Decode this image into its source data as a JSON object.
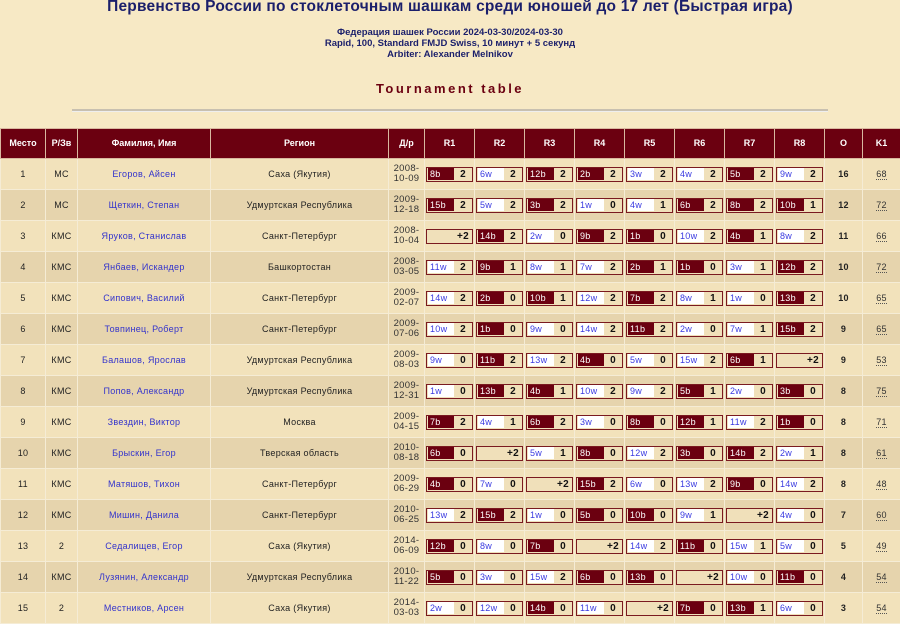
{
  "header": {
    "title": "Первенство России по стоклеточным шашкам среди юношей до 17 лет (Быстрая игра)",
    "line1": "Федерация шашек России 2024-03-30/2024-03-30",
    "line2": "Rapid, 100, Standard FMJD Swiss, 10 минут + 5 секунд",
    "line3": "Arbiter: Alexander Melnikov",
    "section": "Tournament table"
  },
  "colors": {
    "header_bg": "#6b0010",
    "page_bg": "#f7e9c5",
    "link": "#3333cc",
    "black_opp": "#6b0010"
  },
  "table": {
    "columns": [
      "Место",
      "Р/Зв",
      "Фамилия, Имя",
      "Регион",
      "Д/р",
      "R1",
      "R2",
      "R3",
      "R4",
      "R5",
      "R6",
      "R7",
      "R8",
      "O",
      "K1"
    ],
    "rows": [
      {
        "place": "1",
        "rank": "МС",
        "name": "Егоров, Айсен",
        "region": "Саха (Якутия)",
        "dob": "2008-10-09",
        "rounds": [
          [
            "8b",
            "2"
          ],
          [
            "6w",
            "2"
          ],
          [
            "12b",
            "2"
          ],
          [
            "2b",
            "2"
          ],
          [
            "3w",
            "2"
          ],
          [
            "4w",
            "2"
          ],
          [
            "5b",
            "2"
          ],
          [
            "9w",
            "2"
          ]
        ],
        "points": "16",
        "k1": "68"
      },
      {
        "place": "2",
        "rank": "МС",
        "name": "Щеткин, Степан",
        "region": "Удмуртская Республика",
        "dob": "2009-12-18",
        "rounds": [
          [
            "15b",
            "2"
          ],
          [
            "5w",
            "2"
          ],
          [
            "3b",
            "2"
          ],
          [
            "1w",
            "0"
          ],
          [
            "4w",
            "1"
          ],
          [
            "6b",
            "2"
          ],
          [
            "8b",
            "2"
          ],
          [
            "10b",
            "1"
          ]
        ],
        "points": "12",
        "k1": "72"
      },
      {
        "place": "3",
        "rank": "КМС",
        "name": "Яруков, Станислав",
        "region": "Санкт-Петербург",
        "dob": "2008-10-04",
        "rounds": [
          [
            "",
            "+2"
          ],
          [
            "14b",
            "2"
          ],
          [
            "2w",
            "0"
          ],
          [
            "9b",
            "2"
          ],
          [
            "1b",
            "0"
          ],
          [
            "10w",
            "2"
          ],
          [
            "4b",
            "1"
          ],
          [
            "8w",
            "2"
          ]
        ],
        "points": "11",
        "k1": "66"
      },
      {
        "place": "4",
        "rank": "КМС",
        "name": "Янбаев, Искандер",
        "region": "Башкортостан",
        "dob": "2008-03-05",
        "rounds": [
          [
            "11w",
            "2"
          ],
          [
            "9b",
            "1"
          ],
          [
            "8w",
            "1"
          ],
          [
            "7w",
            "2"
          ],
          [
            "2b",
            "1"
          ],
          [
            "1b",
            "0"
          ],
          [
            "3w",
            "1"
          ],
          [
            "12b",
            "2"
          ]
        ],
        "points": "10",
        "k1": "72"
      },
      {
        "place": "5",
        "rank": "КМС",
        "name": "Сипович, Василий",
        "region": "Санкт-Петербург",
        "dob": "2009-02-07",
        "rounds": [
          [
            "14w",
            "2"
          ],
          [
            "2b",
            "0"
          ],
          [
            "10b",
            "1"
          ],
          [
            "12w",
            "2"
          ],
          [
            "7b",
            "2"
          ],
          [
            "8w",
            "1"
          ],
          [
            "1w",
            "0"
          ],
          [
            "13b",
            "2"
          ]
        ],
        "points": "10",
        "k1": "65"
      },
      {
        "place": "6",
        "rank": "КМС",
        "name": "Товпинец, Роберт",
        "region": "Санкт-Петербург",
        "dob": "2009-07-06",
        "rounds": [
          [
            "10w",
            "2"
          ],
          [
            "1b",
            "0"
          ],
          [
            "9w",
            "0"
          ],
          [
            "14w",
            "2"
          ],
          [
            "11b",
            "2"
          ],
          [
            "2w",
            "0"
          ],
          [
            "7w",
            "1"
          ],
          [
            "15b",
            "2"
          ]
        ],
        "points": "9",
        "k1": "65"
      },
      {
        "place": "7",
        "rank": "КМС",
        "name": "Балашов, Ярослав",
        "region": "Удмуртская Республика",
        "dob": "2009-08-03",
        "rounds": [
          [
            "9w",
            "0"
          ],
          [
            "11b",
            "2"
          ],
          [
            "13w",
            "2"
          ],
          [
            "4b",
            "0"
          ],
          [
            "5w",
            "0"
          ],
          [
            "15w",
            "2"
          ],
          [
            "6b",
            "1"
          ],
          [
            "",
            "+2"
          ]
        ],
        "points": "9",
        "k1": "53"
      },
      {
        "place": "8",
        "rank": "КМС",
        "name": "Попов, Александр",
        "region": "Удмуртская Республика",
        "dob": "2009-12-31",
        "rounds": [
          [
            "1w",
            "0"
          ],
          [
            "13b",
            "2"
          ],
          [
            "4b",
            "1"
          ],
          [
            "10w",
            "2"
          ],
          [
            "9w",
            "2"
          ],
          [
            "5b",
            "1"
          ],
          [
            "2w",
            "0"
          ],
          [
            "3b",
            "0"
          ]
        ],
        "points": "8",
        "k1": "75"
      },
      {
        "place": "9",
        "rank": "КМС",
        "name": "Звездин, Виктор",
        "region": "Москва",
        "dob": "2009-04-15",
        "rounds": [
          [
            "7b",
            "2"
          ],
          [
            "4w",
            "1"
          ],
          [
            "6b",
            "2"
          ],
          [
            "3w",
            "0"
          ],
          [
            "8b",
            "0"
          ],
          [
            "12b",
            "1"
          ],
          [
            "11w",
            "2"
          ],
          [
            "1b",
            "0"
          ]
        ],
        "points": "8",
        "k1": "71"
      },
      {
        "place": "10",
        "rank": "КМС",
        "name": "Брыскин, Егор",
        "region": "Тверская область",
        "dob": "2010-08-18",
        "rounds": [
          [
            "6b",
            "0"
          ],
          [
            "",
            "+2"
          ],
          [
            "5w",
            "1"
          ],
          [
            "8b",
            "0"
          ],
          [
            "12w",
            "2"
          ],
          [
            "3b",
            "0"
          ],
          [
            "14b",
            "2"
          ],
          [
            "2w",
            "1"
          ]
        ],
        "points": "8",
        "k1": "61"
      },
      {
        "place": "11",
        "rank": "КМС",
        "name": "Матяшов, Тихон",
        "region": "Санкт-Петербург",
        "dob": "2009-06-29",
        "rounds": [
          [
            "4b",
            "0"
          ],
          [
            "7w",
            "0"
          ],
          [
            "",
            "+2"
          ],
          [
            "15b",
            "2"
          ],
          [
            "6w",
            "0"
          ],
          [
            "13w",
            "2"
          ],
          [
            "9b",
            "0"
          ],
          [
            "14w",
            "2"
          ]
        ],
        "points": "8",
        "k1": "48"
      },
      {
        "place": "12",
        "rank": "КМС",
        "name": "Мишин, Данила",
        "region": "Санкт-Петербург",
        "dob": "2010-06-25",
        "rounds": [
          [
            "13w",
            "2"
          ],
          [
            "15b",
            "2"
          ],
          [
            "1w",
            "0"
          ],
          [
            "5b",
            "0"
          ],
          [
            "10b",
            "0"
          ],
          [
            "9w",
            "1"
          ],
          [
            "",
            "+2"
          ],
          [
            "4w",
            "0"
          ]
        ],
        "points": "7",
        "k1": "60"
      },
      {
        "place": "13",
        "rank": "2",
        "name": "Седалищев, Егор",
        "region": "Саха (Якутия)",
        "dob": "2014-06-09",
        "rounds": [
          [
            "12b",
            "0"
          ],
          [
            "8w",
            "0"
          ],
          [
            "7b",
            "0"
          ],
          [
            "",
            "+2"
          ],
          [
            "14w",
            "2"
          ],
          [
            "11b",
            "0"
          ],
          [
            "15w",
            "1"
          ],
          [
            "5w",
            "0"
          ]
        ],
        "points": "5",
        "k1": "49"
      },
      {
        "place": "14",
        "rank": "КМС",
        "name": "Лузянин, Александр",
        "region": "Удмуртская Республика",
        "dob": "2010-11-22",
        "rounds": [
          [
            "5b",
            "0"
          ],
          [
            "3w",
            "0"
          ],
          [
            "15w",
            "2"
          ],
          [
            "6b",
            "0"
          ],
          [
            "13b",
            "0"
          ],
          [
            "",
            "+2"
          ],
          [
            "10w",
            "0"
          ],
          [
            "11b",
            "0"
          ]
        ],
        "points": "4",
        "k1": "54"
      },
      {
        "place": "15",
        "rank": "2",
        "name": "Местников, Арсен",
        "region": "Саха (Якутия)",
        "dob": "2014-03-03",
        "rounds": [
          [
            "2w",
            "0"
          ],
          [
            "12w",
            "0"
          ],
          [
            "14b",
            "0"
          ],
          [
            "11w",
            "0"
          ],
          [
            "",
            "+2"
          ],
          [
            "7b",
            "0"
          ],
          [
            "13b",
            "1"
          ],
          [
            "6w",
            "0"
          ]
        ],
        "points": "3",
        "k1": "54"
      }
    ]
  }
}
